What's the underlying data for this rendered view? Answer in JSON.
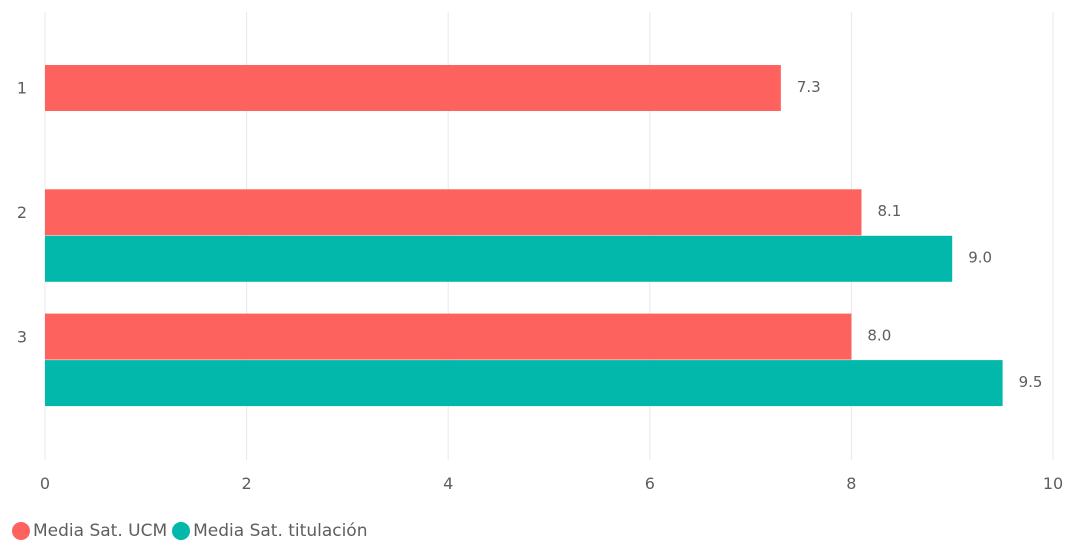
{
  "chart_data": {
    "type": "bar",
    "orientation": "horizontal",
    "categories": [
      "1",
      "2",
      "3"
    ],
    "series": [
      {
        "name": "Media Sat. UCM",
        "color": "#fd625e",
        "values": [
          7.3,
          8.1,
          8.0
        ]
      },
      {
        "name": "Media Sat. titulación",
        "color": "#01b8aa",
        "values": [
          null,
          9.0,
          9.5
        ]
      }
    ],
    "xlim": [
      0,
      10
    ],
    "xticks": [
      "0",
      "2",
      "4",
      "6",
      "8",
      "10"
    ],
    "data_labels": [
      [
        "7.3",
        "8.1",
        "8.0"
      ],
      [
        null,
        "9.0",
        "9.5"
      ]
    ],
    "grid": true,
    "legend_position": "bottom-left",
    "title": "",
    "xlabel": "",
    "ylabel": ""
  }
}
